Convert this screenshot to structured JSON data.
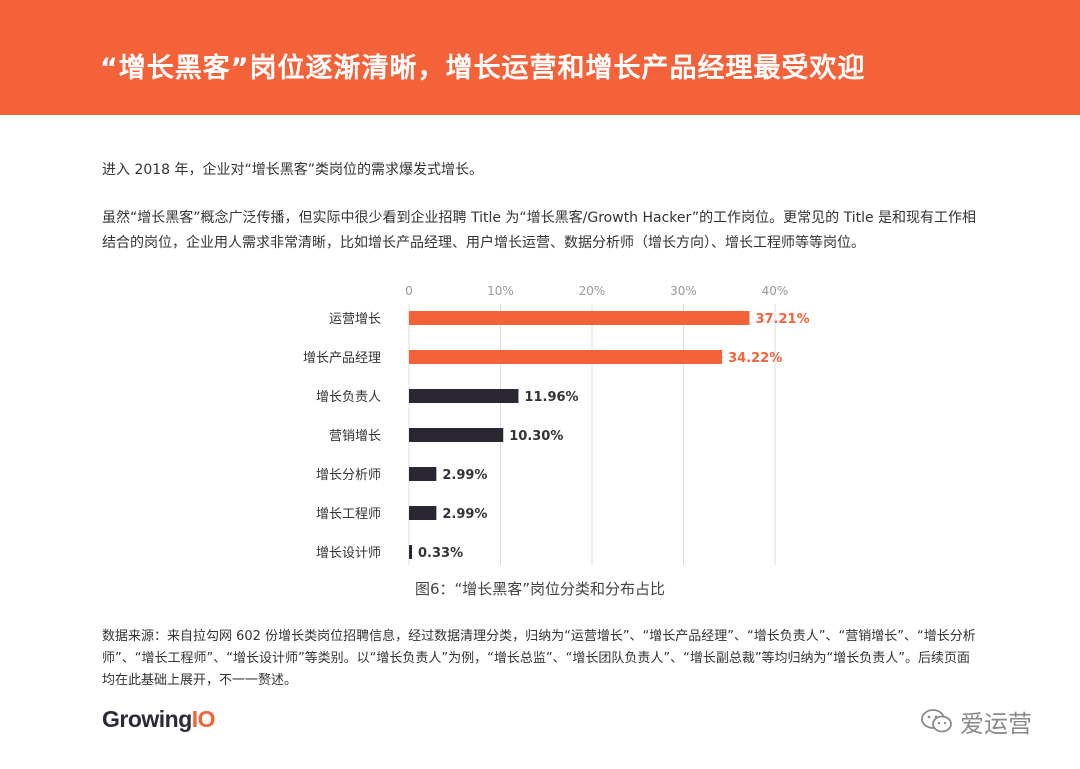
{
  "header": {
    "title": "“增长黑客”岗位逐渐清晰，增长运营和增长产品经理最受欢迎"
  },
  "intro": {
    "p1": "进入 2018 年，企业对“增长黑客”类岗位的需求爆发式增长。",
    "p2": "虽然“增长黑客”概念广泛传播，但实际中很少看到企业招聘 Title 为“增长黑客/Growth Hacker”的工作岗位。更常见的 Title 是和现有工作相结合的岗位，企业用人需求非常清晰，比如增长产品经理、用户增长运营、数据分析师（增长方向）、增长工程师等等岗位。"
  },
  "chart_data": {
    "type": "bar",
    "orientation": "horizontal",
    "categories": [
      "运营增长",
      "增长产品经理",
      "增长负责人",
      "营销增长",
      "增长分析师",
      "增长工程师",
      "增长设计师"
    ],
    "values": [
      37.21,
      34.22,
      11.96,
      10.3,
      2.99,
      2.99,
      0.33
    ],
    "value_labels": [
      "37.21%",
      "34.22%",
      "11.96%",
      "10.30%",
      "2.99%",
      "2.99%",
      "0.33%"
    ],
    "highlight_count": 2,
    "xlim": [
      0,
      40
    ],
    "x_ticks": [
      0,
      10,
      20,
      30,
      40
    ],
    "x_tick_labels": [
      "0",
      "10%",
      "20%",
      "30%",
      "40%"
    ],
    "x_axis_position": "top",
    "grid": true,
    "title": "",
    "xlabel": "",
    "ylabel": ""
  },
  "caption": "图6：“增长黑客”岗位分类和分布占比",
  "footnote": "数据来源：来自拉勾网 602 份增长类岗位招聘信息，经过数据清理分类，归纳为“运营增长”、“增长产品经理”、“增长负责人”、“营销增长”、“增长分析师”、“增长工程师”、“增长设计师”等类别。以“增长负责人”为例，“增长总监”、“增长团队负责人”、“增长副总裁”等均归纳为“增长负责人”。后续页面均在此基础上展开，不一一赘述。",
  "logo": {
    "main": "Growing",
    "accent": "IO"
  },
  "watermark": {
    "text": "爱运营",
    "icon": "wechat-icon"
  },
  "colors": {
    "accent": "#f4623a",
    "dark_bar": "#2a2633",
    "grid": "#dddddd",
    "tick": "#999999"
  }
}
